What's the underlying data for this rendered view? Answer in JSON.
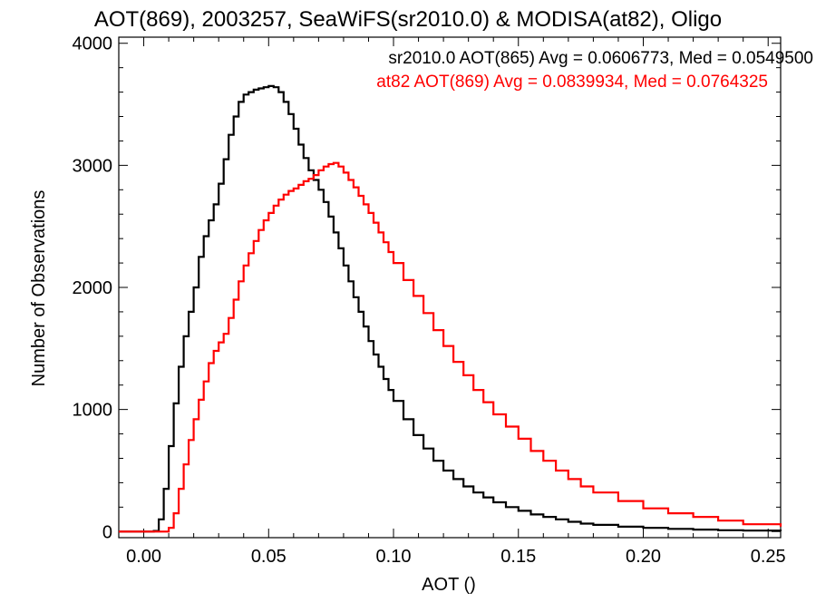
{
  "chart_data": {
    "type": "line",
    "step": true,
    "title": "AOT(869), 2003257, SeaWiFS(sr2010.0) & MODISA(at82), Oligo",
    "xlabel": "AOT ()",
    "ylabel": "Number of Observations",
    "xlim": [
      -0.01,
      0.255
    ],
    "ylim": [
      -50,
      4050
    ],
    "x_ticks": [
      0.0,
      0.05,
      0.1,
      0.15,
      0.2,
      0.25
    ],
    "x_tick_labels": [
      "0.00",
      "0.05",
      "0.10",
      "0.15",
      "0.20",
      "0.25"
    ],
    "y_ticks": [
      0,
      1000,
      2000,
      3000,
      4000
    ],
    "y_tick_labels": [
      "0",
      "1000",
      "2000",
      "3000",
      "4000"
    ],
    "grid": false,
    "legend_placement": "top-right",
    "series": [
      {
        "name": "sr2010.0 AOT(865) Avg = 0.0606773, Med = 0.0549500",
        "color": "#000000",
        "points": [
          [
            -0.01,
            0
          ],
          [
            0.0,
            0
          ],
          [
            0.002,
            0
          ],
          [
            0.004,
            5
          ],
          [
            0.006,
            100
          ],
          [
            0.008,
            350
          ],
          [
            0.01,
            700
          ],
          [
            0.012,
            1050
          ],
          [
            0.014,
            1350
          ],
          [
            0.016,
            1600
          ],
          [
            0.018,
            1800
          ],
          [
            0.02,
            2000
          ],
          [
            0.022,
            2250
          ],
          [
            0.024,
            2420
          ],
          [
            0.026,
            2550
          ],
          [
            0.028,
            2680
          ],
          [
            0.03,
            2850
          ],
          [
            0.032,
            3050
          ],
          [
            0.034,
            3250
          ],
          [
            0.036,
            3400
          ],
          [
            0.038,
            3520
          ],
          [
            0.04,
            3580
          ],
          [
            0.042,
            3600
          ],
          [
            0.044,
            3620
          ],
          [
            0.046,
            3630
          ],
          [
            0.048,
            3640
          ],
          [
            0.05,
            3650
          ],
          [
            0.052,
            3640
          ],
          [
            0.054,
            3600
          ],
          [
            0.056,
            3520
          ],
          [
            0.058,
            3420
          ],
          [
            0.06,
            3300
          ],
          [
            0.062,
            3170
          ],
          [
            0.064,
            3060
          ],
          [
            0.066,
            2960
          ],
          [
            0.068,
            2880
          ],
          [
            0.07,
            2800
          ],
          [
            0.072,
            2700
          ],
          [
            0.074,
            2580
          ],
          [
            0.076,
            2450
          ],
          [
            0.078,
            2320
          ],
          [
            0.08,
            2180
          ],
          [
            0.082,
            2050
          ],
          [
            0.084,
            1920
          ],
          [
            0.086,
            1800
          ],
          [
            0.088,
            1680
          ],
          [
            0.09,
            1560
          ],
          [
            0.092,
            1450
          ],
          [
            0.094,
            1350
          ],
          [
            0.096,
            1250
          ],
          [
            0.098,
            1160
          ],
          [
            0.1,
            1070
          ],
          [
            0.104,
            920
          ],
          [
            0.108,
            790
          ],
          [
            0.112,
            680
          ],
          [
            0.116,
            580
          ],
          [
            0.12,
            500
          ],
          [
            0.124,
            430
          ],
          [
            0.128,
            370
          ],
          [
            0.132,
            320
          ],
          [
            0.136,
            280
          ],
          [
            0.14,
            240
          ],
          [
            0.145,
            200
          ],
          [
            0.15,
            170
          ],
          [
            0.155,
            140
          ],
          [
            0.16,
            120
          ],
          [
            0.165,
            100
          ],
          [
            0.17,
            80
          ],
          [
            0.175,
            65
          ],
          [
            0.18,
            55
          ],
          [
            0.19,
            40
          ],
          [
            0.2,
            30
          ],
          [
            0.21,
            22
          ],
          [
            0.22,
            16
          ],
          [
            0.23,
            11
          ],
          [
            0.24,
            8
          ],
          [
            0.255,
            4
          ]
        ]
      },
      {
        "name": "at82 AOT(869) Avg = 0.0839934, Med = 0.0764325",
        "color": "#ff0000",
        "points": [
          [
            -0.01,
            0
          ],
          [
            0.008,
            0
          ],
          [
            0.01,
            30
          ],
          [
            0.012,
            150
          ],
          [
            0.014,
            350
          ],
          [
            0.016,
            550
          ],
          [
            0.018,
            750
          ],
          [
            0.02,
            920
          ],
          [
            0.022,
            1080
          ],
          [
            0.024,
            1230
          ],
          [
            0.026,
            1380
          ],
          [
            0.028,
            1480
          ],
          [
            0.03,
            1550
          ],
          [
            0.032,
            1620
          ],
          [
            0.034,
            1750
          ],
          [
            0.036,
            1900
          ],
          [
            0.038,
            2050
          ],
          [
            0.04,
            2180
          ],
          [
            0.042,
            2280
          ],
          [
            0.044,
            2380
          ],
          [
            0.046,
            2470
          ],
          [
            0.048,
            2550
          ],
          [
            0.05,
            2610
          ],
          [
            0.052,
            2670
          ],
          [
            0.054,
            2720
          ],
          [
            0.056,
            2760
          ],
          [
            0.058,
            2790
          ],
          [
            0.06,
            2810
          ],
          [
            0.062,
            2840
          ],
          [
            0.064,
            2870
          ],
          [
            0.066,
            2890
          ],
          [
            0.068,
            2920
          ],
          [
            0.07,
            2960
          ],
          [
            0.072,
            2990
          ],
          [
            0.074,
            3010
          ],
          [
            0.076,
            3020
          ],
          [
            0.078,
            2990
          ],
          [
            0.08,
            2940
          ],
          [
            0.082,
            2880
          ],
          [
            0.084,
            2820
          ],
          [
            0.086,
            2750
          ],
          [
            0.088,
            2680
          ],
          [
            0.09,
            2610
          ],
          [
            0.092,
            2530
          ],
          [
            0.094,
            2450
          ],
          [
            0.096,
            2370
          ],
          [
            0.098,
            2290
          ],
          [
            0.1,
            2200
          ],
          [
            0.104,
            2060
          ],
          [
            0.108,
            1930
          ],
          [
            0.112,
            1790
          ],
          [
            0.116,
            1650
          ],
          [
            0.12,
            1520
          ],
          [
            0.124,
            1390
          ],
          [
            0.128,
            1280
          ],
          [
            0.132,
            1160
          ],
          [
            0.136,
            1060
          ],
          [
            0.14,
            960
          ],
          [
            0.145,
            860
          ],
          [
            0.15,
            760
          ],
          [
            0.155,
            660
          ],
          [
            0.16,
            580
          ],
          [
            0.165,
            500
          ],
          [
            0.17,
            430
          ],
          [
            0.175,
            370
          ],
          [
            0.18,
            320
          ],
          [
            0.19,
            250
          ],
          [
            0.2,
            190
          ],
          [
            0.21,
            150
          ],
          [
            0.22,
            120
          ],
          [
            0.23,
            90
          ],
          [
            0.24,
            60
          ],
          [
            0.255,
            40
          ]
        ]
      }
    ]
  }
}
